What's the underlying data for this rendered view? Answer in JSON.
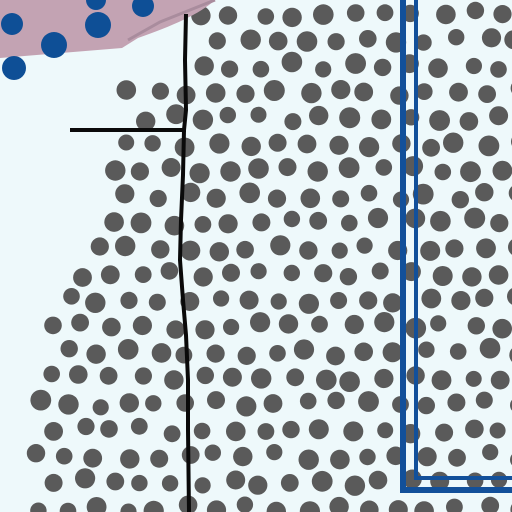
{
  "map": {
    "colors": {
      "background": "#eef9fb",
      "dot_pattern": "#5a5a5a",
      "blue_dots": "#0e4f96",
      "mauve_band": "#c3a3b3",
      "road_line": "#0a0a0a",
      "boundary_line": "#12509a"
    },
    "layers": [
      {
        "id": "stipple-area",
        "symbol": "gray-dot-pattern"
      },
      {
        "id": "road-corner",
        "symbol": "mauve-band-with-blue-dots"
      },
      {
        "id": "trail",
        "symbol": "black-line"
      },
      {
        "id": "boundary",
        "symbol": "blue-double-line"
      }
    ]
  }
}
